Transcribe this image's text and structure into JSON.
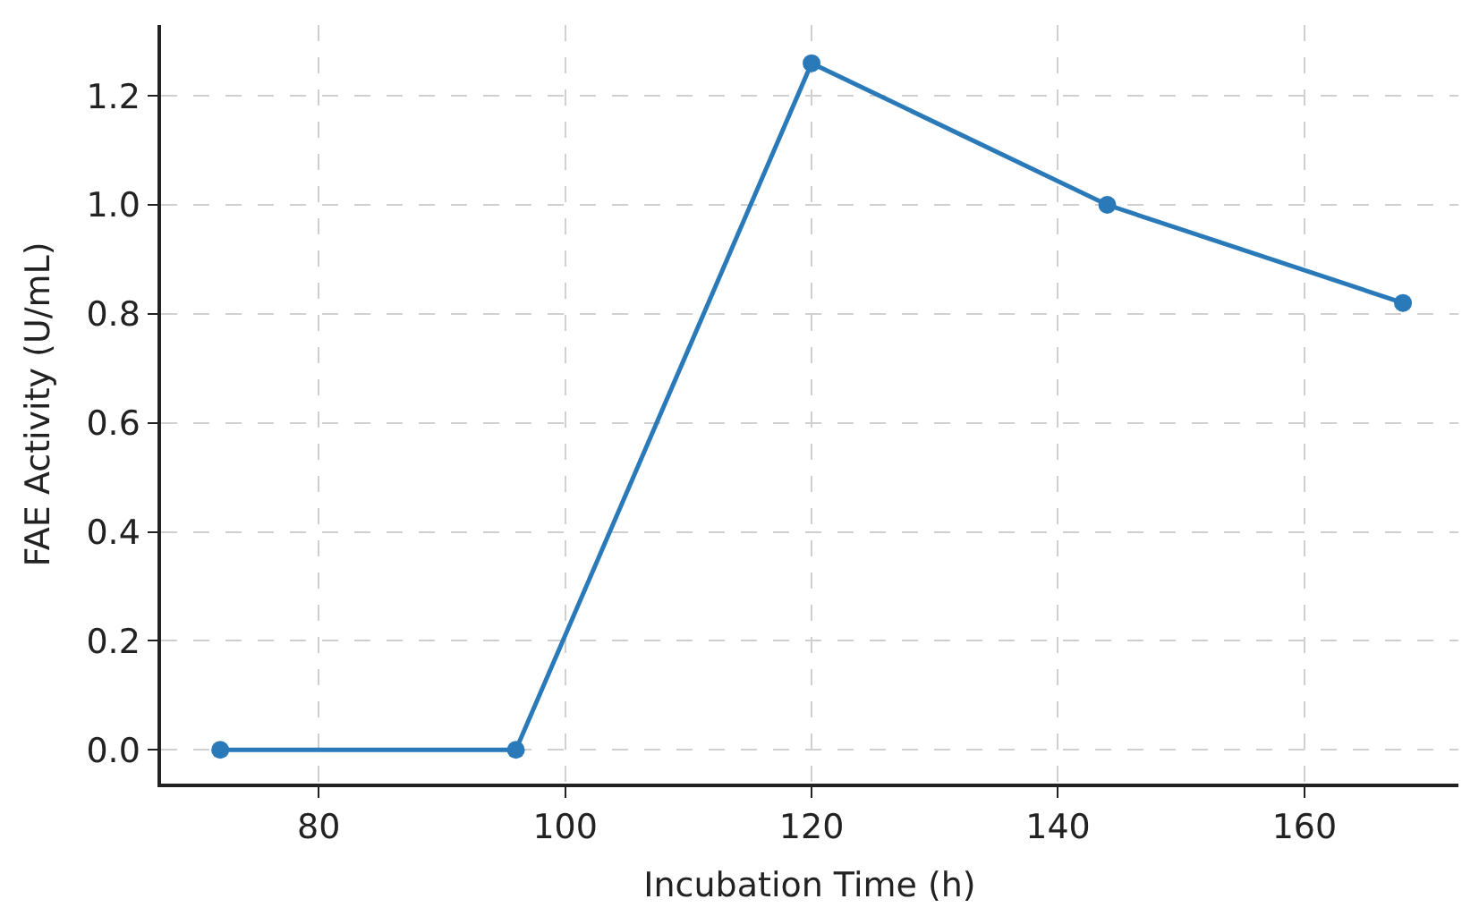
{
  "chart_data": {
    "type": "line",
    "xlabel": "Incubation Time (h)",
    "ylabel": "FAE Activity (U/mL)",
    "x": [
      72,
      96,
      120,
      144,
      168
    ],
    "series": [
      {
        "color": "#2a7ab9",
        "values": [
          0,
          0,
          1.26,
          1.0,
          0.82
        ]
      }
    ],
    "xlim": [
      67.2,
      172.5
    ],
    "xticks": [
      80,
      100,
      120,
      140,
      160
    ],
    "ylim": [
      -0.062,
      1.33
    ],
    "yticks": [
      {
        "value": 0,
        "label": "0.0"
      },
      {
        "value": 0.2,
        "label": "0.2"
      },
      {
        "value": 0.4,
        "label": "0.4"
      },
      {
        "value": 0.6,
        "label": "0.6"
      },
      {
        "value": 0.8,
        "label": "0.8"
      },
      {
        "value": 1.0,
        "label": "1.0"
      },
      {
        "value": 1.2,
        "label": "1.2"
      }
    ],
    "grid": true,
    "marker": "circle",
    "line_style": "solid",
    "legend": false
  }
}
